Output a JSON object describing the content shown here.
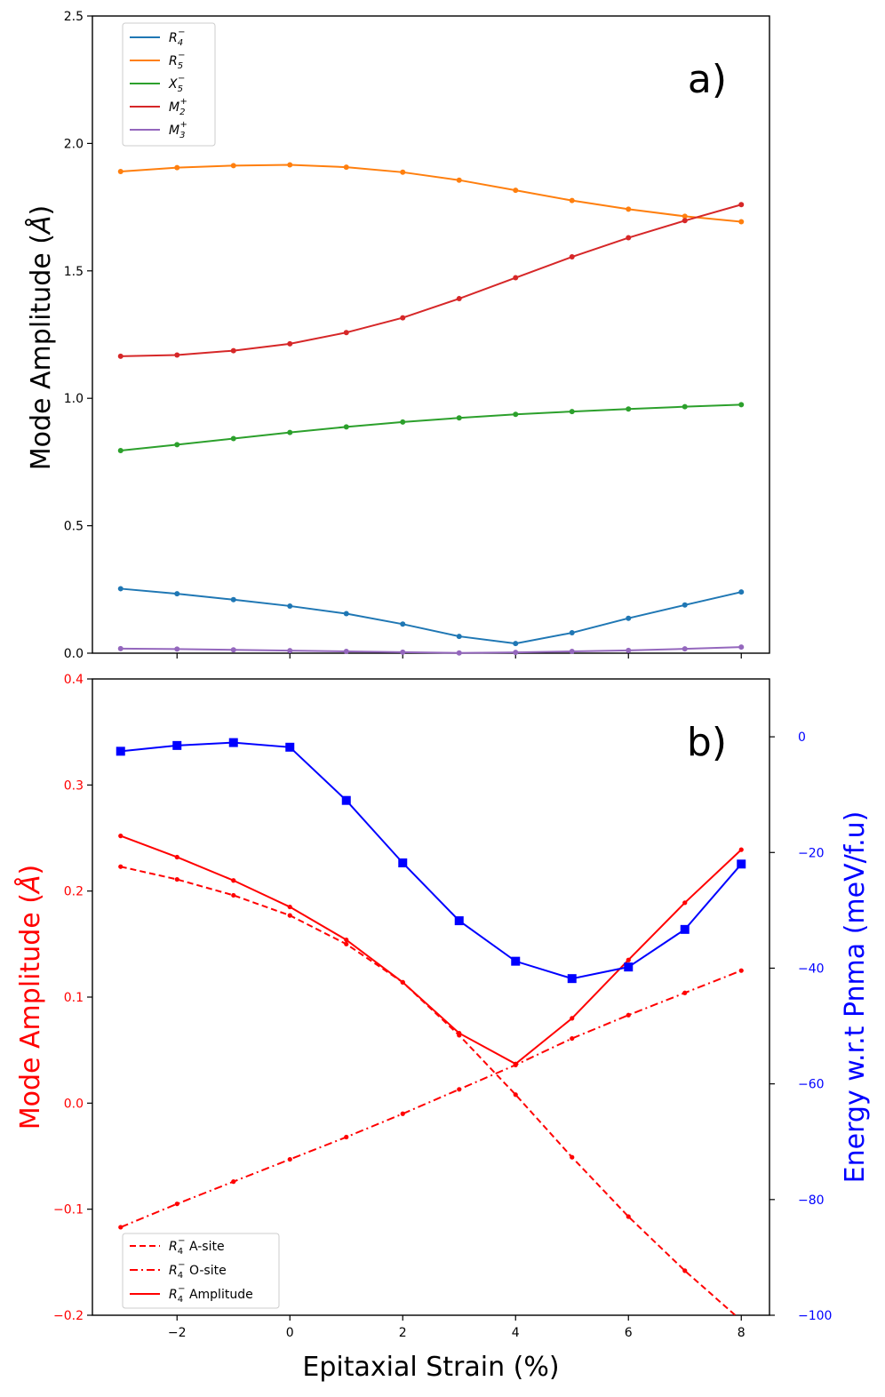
{
  "chart_data": [
    {
      "panel": "a)",
      "type": "line",
      "xlabel": "",
      "ylabel": "Mode Amplitude (Å)",
      "ylabel_text": "Mode Amplitude (",
      "ylabel_unit": "Å",
      "ylabel_close": ")",
      "xlim": [
        -3.5,
        8.5
      ],
      "ylim": [
        0.0,
        2.5
      ],
      "yticks": [
        0.0,
        0.5,
        1.0,
        1.5,
        2.0,
        2.5
      ],
      "ytick_labels": [
        "0.0",
        "0.5",
        "1.0",
        "1.5",
        "2.0",
        "2.5"
      ],
      "x": [
        -3,
        -2,
        -1,
        0,
        1,
        2,
        3,
        4,
        5,
        6,
        7,
        8
      ],
      "legend_position": "top-left",
      "series": [
        {
          "name": "R4-",
          "label_base": "R",
          "sub": "4",
          "sup": "−",
          "color": "#1f77b4",
          "values": [
            0.253,
            0.233,
            0.21,
            0.185,
            0.155,
            0.114,
            0.066,
            0.038,
            0.08,
            0.137,
            0.189,
            0.24
          ]
        },
        {
          "name": "R5-",
          "label_base": "R",
          "sub": "5",
          "sup": "−",
          "color": "#ff7f0e",
          "values": [
            1.89,
            1.905,
            1.913,
            1.916,
            1.907,
            1.887,
            1.856,
            1.816,
            1.776,
            1.742,
            1.714,
            1.693
          ]
        },
        {
          "name": "X5-",
          "label_base": "X",
          "sub": "5",
          "sup": "−",
          "color": "#2ca02c",
          "values": [
            0.795,
            0.818,
            0.842,
            0.866,
            0.888,
            0.907,
            0.923,
            0.937,
            0.948,
            0.958,
            0.967,
            0.975
          ]
        },
        {
          "name": "M2+",
          "label_base": "M",
          "sub": "2",
          "sup": "+",
          "color": "#d62728",
          "values": [
            1.165,
            1.17,
            1.187,
            1.214,
            1.258,
            1.316,
            1.391,
            1.473,
            1.555,
            1.63,
            1.697,
            1.76
          ]
        },
        {
          "name": "M3+",
          "label_base": "M",
          "sub": "3",
          "sup": "+",
          "color": "#9467bd",
          "values": [
            0.018,
            0.016,
            0.013,
            0.01,
            0.007,
            0.004,
            0.001,
            0.003,
            0.007,
            0.011,
            0.017,
            0.024
          ]
        }
      ]
    },
    {
      "panel": "b)",
      "type": "line",
      "xlabel": "Epitaxial Strain (%)",
      "ylabel": "Mode Amplitude (Å)",
      "ylabel_text": "Mode Amplitude (",
      "ylabel_unit": "Å",
      "ylabel_close": ")",
      "ylabel_right": "Energy w.r.t Pnma (meV/f.u)",
      "xlim": [
        -3.5,
        8.5
      ],
      "ylim": [
        -0.2,
        0.4
      ],
      "ylim_right": [
        -100,
        10
      ],
      "xticks": [
        -2,
        0,
        2,
        4,
        6,
        8
      ],
      "xtick_labels": [
        "−2",
        "0",
        "2",
        "4",
        "6",
        "8"
      ],
      "yticks": [
        -0.2,
        -0.1,
        0.0,
        0.1,
        0.2,
        0.3,
        0.4
      ],
      "ytick_labels": [
        "−0.2",
        "−0.1",
        "0.0",
        "0.1",
        "0.2",
        "0.3",
        "0.4"
      ],
      "yticks_right": [
        -100,
        -80,
        -60,
        -40,
        -20,
        0
      ],
      "ytick_labels_right": [
        "−100",
        "−80",
        "−60",
        "−40",
        "−20",
        "0"
      ],
      "x": [
        -3,
        -2,
        -1,
        0,
        1,
        2,
        3,
        4,
        5,
        6,
        7,
        8
      ],
      "legend_position": "bottom-left",
      "series": [
        {
          "name": "R4- A-site",
          "label_base": "R",
          "sub": "4",
          "sup": "−",
          "suffix": "  A-site",
          "color": "#ff0000",
          "style": "dashed",
          "axis": "left",
          "values": [
            0.223,
            0.211,
            0.196,
            0.177,
            0.15,
            0.114,
            0.064,
            0.008,
            -0.051,
            -0.107,
            -0.158,
            -0.205
          ]
        },
        {
          "name": "R4- O-site",
          "label_base": "R",
          "sub": "4",
          "sup": "−",
          "suffix": "  O-site",
          "color": "#ff0000",
          "style": "dashdot",
          "axis": "left",
          "values": [
            -0.117,
            -0.095,
            -0.074,
            -0.053,
            -0.032,
            -0.01,
            0.013,
            0.036,
            0.061,
            0.083,
            0.104,
            0.125
          ]
        },
        {
          "name": "R4- Amplitude",
          "label_base": "R",
          "sub": "4",
          "sup": "−",
          "suffix": "  Amplitude",
          "color": "#ff0000",
          "style": "solid",
          "axis": "left",
          "values": [
            0.252,
            0.232,
            0.21,
            0.185,
            0.154,
            0.114,
            0.066,
            0.037,
            0.08,
            0.135,
            0.189,
            0.239
          ]
        },
        {
          "name": "Energy",
          "color": "#0000ff",
          "style": "solid",
          "marker": "square",
          "axis": "right",
          "in_legend": false,
          "values": [
            -2.5,
            -1.5,
            -1.0,
            -1.8,
            -11.0,
            -21.8,
            -31.8,
            -38.8,
            -41.8,
            -39.8,
            -33.3,
            -22.0
          ]
        }
      ]
    }
  ]
}
